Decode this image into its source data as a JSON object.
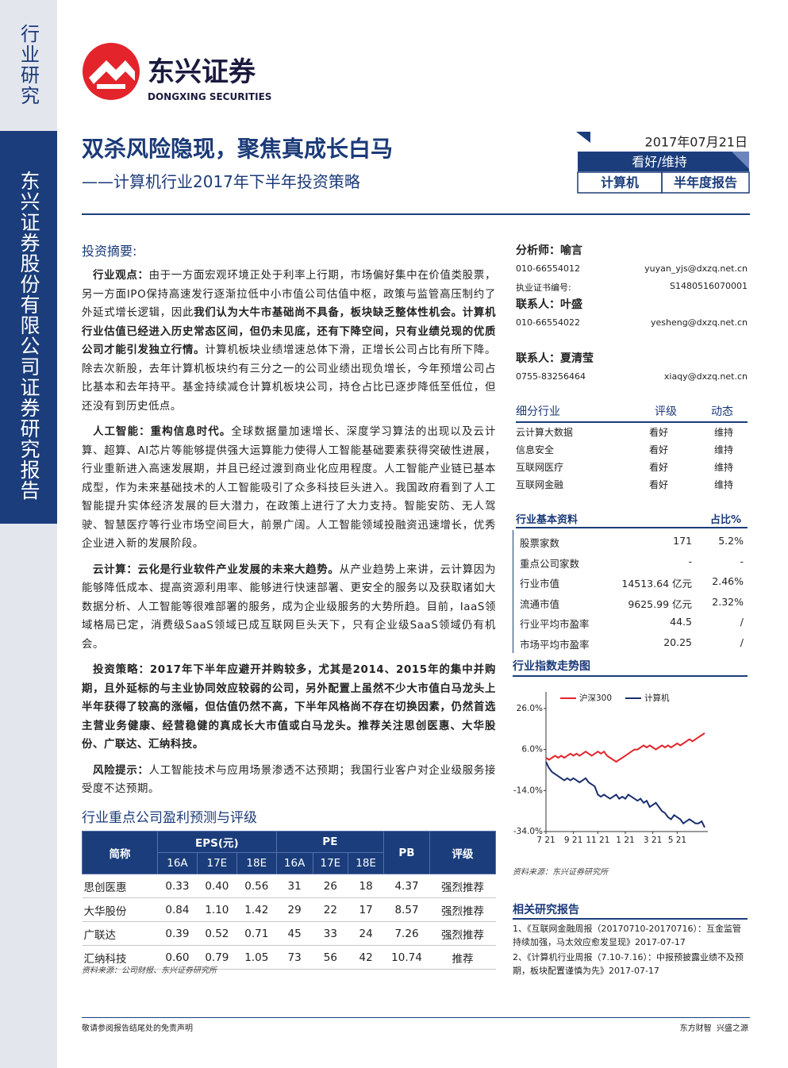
{
  "sidebar": {
    "category": "行业研究",
    "publisher": "东兴证券股份有限公司证券研究报告"
  },
  "logo": {
    "name": "东兴证券",
    "name_en": "DONGXING SECURITIES"
  },
  "header": {
    "title": "双杀风险隐现，聚焦真成长白马",
    "subtitle": "——计算机行业2017年下半年投资策略",
    "date": "2017年07月21日",
    "rating": "看好/维持",
    "industry": "计算机",
    "report_type": "半年度报告"
  },
  "summary": {
    "heading": "投资摘要:",
    "paragraphs": [
      [
        {
          "text": "行业观点：",
          "bold": true
        },
        {
          "text": "由于一方面宏观环境正处于利率上行期，市场偏好集中在价值类股票，另一方面IPO保持高速发行逐渐拉低中小市值公司估值中枢，政策与监管高压制约了外延式增长逻辑，因此",
          "bold": false
        },
        {
          "text": "我们认为大牛市基础尚不具备，板块缺乏整体性机会。计算机行业估值已经进入历史常态区间，但仍未见底，还有下降空间，只有业绩兑现的优质公司才能引发独立行情。",
          "bold": true
        },
        {
          "text": "计算机板块业绩增速总体下滑，正增长公司占比有所下降。除去次新股，去年计算机板块约有三分之一的公司业绩出现负增长，今年预增公司占比基本和去年持平。基金持续减仓计算机板块公司，持仓占比已逐步降低至低位，但还没有到历史低点。",
          "bold": false
        }
      ],
      [
        {
          "text": "人工智能：重构信息时代。",
          "bold": true
        },
        {
          "text": "全球数据量加速增长、深度学习算法的出现以及云计算、超算、AI芯片等能够提供强大运算能力使得人工智能基础要素获得突破性进展，行业重新进入高速发展期，并且已经过渡到商业化应用程度。人工智能产业链已基本成型，作为未来基础技术的人工智能吸引了众多科技巨头进入。我国政府看到了人工智能提升实体经济发展的巨大潜力，在政策上进行了大力支持。智能安防、无人驾驶、智慧医疗等行业市场空间巨大，前景广阔。人工智能领域投融资迅速增长，优秀企业进入新的发展阶段。",
          "bold": false
        }
      ],
      [
        {
          "text": "云计算：云化是行业软件产业发展的未来大趋势。",
          "bold": true
        },
        {
          "text": "从产业趋势上来讲，云计算因为能够降低成本、提高资源利用率、能够进行快速部署、更安全的服务以及获取诸如大数据分析、人工智能等很难部署的服务，成为企业级服务的大势所趋。目前，IaaS领域格局已定，消费级SaaS领域已成互联网巨头天下，只有企业级SaaS领域仍有机会。",
          "bold": false
        }
      ],
      [
        {
          "text": "投资策略：2017年下半年应避开并购较多，尤其是2014、2015年的集中并购期，且外延标的与主业协同效应较弱的公司，另外配置上虽然不少大市值白马龙头上半年获得了较高的涨幅，但估值仍然不高，下半年风格尚不存在切换因素，仍然首选主营业务健康、经营稳健的真成长大市值或白马龙头。推荐关注思创医惠、大华股份、广联达、汇纳科技。",
          "bold": true
        }
      ],
      [
        {
          "text": "风险提示：",
          "bold": true
        },
        {
          "text": "人工智能技术与应用场景渗透不达预期；我国行业客户对企业级服务接受度不达预期。",
          "bold": false
        }
      ]
    ]
  },
  "forecast_table": {
    "title": "行业重点公司盈利预测与评级",
    "header": [
      "简称",
      "EPS(元)",
      "PE",
      "PB",
      "评级"
    ],
    "subheader": [
      "16A",
      "17E",
      "18E",
      "16A",
      "17E",
      "18E"
    ],
    "rows": [
      [
        "思创医惠",
        "0.33",
        "0.40",
        "0.56",
        "31",
        "26",
        "18",
        "4.37",
        "强烈推荐"
      ],
      [
        "大华股份",
        "0.84",
        "1.10",
        "1.42",
        "29",
        "22",
        "17",
        "8.57",
        "强烈推荐"
      ],
      [
        "广联达",
        "0.39",
        "0.52",
        "0.71",
        "45",
        "33",
        "24",
        "7.26",
        "强烈推荐"
      ],
      [
        "汇纳科技",
        "0.60",
        "0.79",
        "1.05",
        "73",
        "56",
        "42",
        "10.74",
        "推荐"
      ]
    ],
    "source": "资料来源：公司财报、东兴证券研究所"
  },
  "contacts": [
    {
      "role": "分析师：喻言",
      "phone": "010-66554012",
      "email": "yuyan_yjs@dxzq.net.cn",
      "cert_label": "执业证书编号:",
      "cert": "S1480516070001"
    },
    {
      "role": "联系人：叶盛",
      "phone": "010-66554022",
      "email": "yesheng@dxzq.net.cn"
    },
    {
      "role": "联系人：夏清莹",
      "phone": "0755-83256464",
      "email": "xiaqy@dxzq.net.cn"
    }
  ],
  "sub_industries": {
    "header": [
      "细分行业",
      "评级",
      "动态"
    ],
    "rows": [
      [
        "云计算大数据",
        "看好",
        "维持"
      ],
      [
        "信息安全",
        "看好",
        "维持"
      ],
      [
        "互联网医疗",
        "看好",
        "维持"
      ],
      [
        "互联网金融",
        "看好",
        "维持"
      ]
    ]
  },
  "basic_info": {
    "header": [
      "行业基本资料",
      "占比%"
    ],
    "rows": [
      [
        "股票家数",
        "171",
        "5.2%"
      ],
      [
        "重点公司家数",
        "-",
        "-"
      ],
      [
        "行业市值",
        "14513.64 亿元",
        "2.46%"
      ],
      [
        "流通市值",
        "9625.99 亿元",
        "2.32%"
      ],
      [
        "行业平均市盈率",
        "44.5",
        "/"
      ],
      [
        "市场平均市盈率",
        "20.25",
        "/"
      ]
    ]
  },
  "chart_data": {
    "type": "line",
    "title": "行业指数走势图",
    "source": "资料来源：东兴证券研究所",
    "categories": [
      "7 21",
      null,
      null,
      null,
      null,
      null,
      null,
      null,
      null,
      "9 21",
      null,
      null,
      null,
      null,
      null,
      null,
      null,
      "11 21",
      null,
      null,
      null,
      null,
      null,
      null,
      null,
      null,
      "1 21",
      null,
      null,
      null,
      null,
      null,
      null,
      null,
      null,
      "3 21",
      null,
      null,
      null,
      null,
      null,
      null,
      null,
      "5 21",
      null,
      null,
      null,
      null,
      null,
      null,
      null,
      null,
      null
    ],
    "series": [
      {
        "name": "沪深300",
        "color": "#e3242b",
        "values": [
          2,
          1,
          2,
          3,
          2,
          3,
          2,
          3,
          4,
          3,
          4,
          3,
          4,
          5,
          4,
          3,
          4,
          5,
          4,
          5,
          3,
          2,
          1,
          0,
          1,
          2,
          3,
          4,
          5,
          6,
          6,
          7,
          8,
          7,
          8,
          7,
          6,
          7,
          8,
          7,
          8,
          7,
          8,
          9,
          8,
          9,
          10,
          11,
          10,
          11,
          12,
          13,
          14
        ]
      },
      {
        "name": "计算机",
        "color": "#1a2f6e",
        "values": [
          0,
          -3,
          -5,
          -6,
          -7,
          -8,
          -9,
          -8,
          -9,
          -8,
          -9,
          -10,
          -9,
          -8,
          -10,
          -11,
          -12,
          -16,
          -17,
          -16,
          -17,
          -18,
          -17,
          -16,
          -18,
          -17,
          -18,
          -16,
          -17,
          -18,
          -19,
          -18,
          -20,
          -19,
          -22,
          -21,
          -20,
          -22,
          -24,
          -25,
          -27,
          -28,
          -26,
          -27,
          -28,
          -30,
          -29,
          -28,
          -29,
          -30,
          -30,
          -29,
          -32
        ]
      }
    ],
    "ylim": [
      -34,
      31
    ],
    "yticks": [
      {
        "value": 26,
        "label": "26.0%"
      },
      {
        "value": 6,
        "label": "6.0%"
      },
      {
        "value": -14,
        "label": "-14.0%"
      },
      {
        "value": -34,
        "label": "-34.0%"
      }
    ]
  },
  "related": {
    "heading": "相关研究报告",
    "items": [
      "1、《互联网金融周报（20170710-20170716）：互金监管持续加强，马太效应愈发显现》2017-07-17",
      "2、《计算机行业周报（7.10-7.16）：中报预披露业绩不及预期，板块配置谨慎为先》2017-07-17"
    ]
  },
  "footer": {
    "disclaimer": "敬请参阅报告结尾处的免责声明",
    "slogan": "东方财智  兴盛之源"
  }
}
